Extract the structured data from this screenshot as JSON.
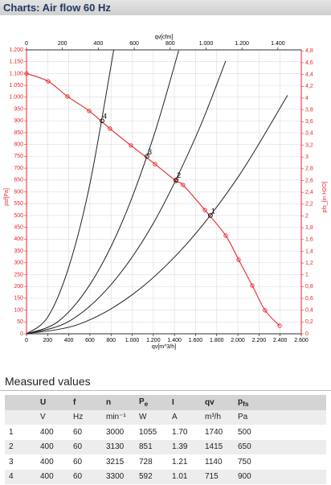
{
  "header": {
    "title": "Charts: Air flow 60 Hz"
  },
  "chart_data": {
    "type": "line",
    "x_label": "qv[m^3/h]",
    "x2_label": "qv[cfm]",
    "y_label": "psf[Pa]",
    "y2_label": "pfs_[in H2O]",
    "xlim": [
      0,
      2600
    ],
    "xticks": [
      0,
      200,
      400,
      600,
      800,
      {
        "value": 1000,
        "label": "1.000"
      },
      {
        "value": 1200,
        "label": "1.200"
      },
      {
        "value": 1400,
        "label": "1.400"
      },
      {
        "value": 1600,
        "label": "1.600"
      },
      {
        "value": 1800,
        "label": "1.800"
      },
      {
        "value": 2000,
        "label": "2.000"
      },
      {
        "value": 2200,
        "label": "2.200"
      },
      {
        "value": 2400,
        "label": "2.400"
      },
      {
        "value": 2600,
        "label": "2.600"
      }
    ],
    "x2lim": [
      0,
      1530.3
    ],
    "x2ticks": [
      0,
      200,
      400,
      600,
      800,
      {
        "value": 1000,
        "label": "1.000"
      },
      {
        "value": 1200,
        "label": "1.200"
      },
      {
        "value": 1400,
        "label": "1.400"
      }
    ],
    "ylim": [
      0,
      1200
    ],
    "yticks": [
      0,
      50,
      100,
      150,
      200,
      250,
      300,
      350,
      400,
      450,
      500,
      550,
      600,
      650,
      700,
      750,
      800,
      850,
      900,
      950,
      {
        "value": 1000,
        "label": "1.000"
      },
      {
        "value": 1050,
        "label": "1.050"
      },
      {
        "value": 1100,
        "label": "1.100"
      },
      {
        "value": 1150,
        "label": "1.150"
      },
      {
        "value": 1200,
        "label": "1.200"
      }
    ],
    "y2lim": [
      0,
      4.818
    ],
    "y2ticks": [
      0,
      {
        "value": 0.2,
        "label": "0,2"
      },
      {
        "value": 0.4,
        "label": "0,4"
      },
      {
        "value": 0.6,
        "label": "0,6"
      },
      {
        "value": 0.8,
        "label": "0,8"
      },
      1,
      {
        "value": 1.2,
        "label": "1,2"
      },
      {
        "value": 1.4,
        "label": "1,4"
      },
      {
        "value": 1.6,
        "label": "1,6"
      },
      {
        "value": 1.8,
        "label": "1,8"
      },
      2,
      {
        "value": 2.2,
        "label": "2,2"
      },
      {
        "value": 2.4,
        "label": "2,4"
      },
      {
        "value": 2.6,
        "label": "2,6"
      },
      {
        "value": 2.8,
        "label": "2,8"
      },
      3,
      {
        "value": 3.2,
        "label": "3,2"
      },
      {
        "value": 3.4,
        "label": "3,4"
      },
      {
        "value": 3.6,
        "label": "3,6"
      },
      {
        "value": 3.8,
        "label": "3,8"
      },
      4,
      {
        "value": 4.2,
        "label": "4,2"
      },
      {
        "value": 4.4,
        "label": "4,4"
      },
      {
        "value": 4.6,
        "label": "4,6"
      },
      {
        "value": 4.8,
        "label": "4,8"
      }
    ],
    "grid": true,
    "series": [
      {
        "color": "#e8262a",
        "x": [
          0,
          205,
          388,
          593,
          790,
          988,
          1216,
          1414,
          1482,
          1688,
          1885,
          2007,
          2136,
          2258,
          2395
        ],
        "values": [
          1100,
          1067,
          1003,
          942,
          867,
          796,
          717,
          646,
          629,
          523,
          415,
          313,
          204,
          99,
          34
        ]
      }
    ],
    "system_curves": [
      {
        "color": "#222222",
        "x": [
          0,
          500,
          1000,
          1500,
          2000,
          2470
        ],
        "values": [
          0,
          41,
          165,
          372,
          661,
          1008
        ]
      },
      {
        "color": "#222222",
        "x": [
          0,
          400,
          800,
          1200,
          1600,
          1885
        ],
        "values": [
          0,
          52,
          208,
          467,
          831,
          1153
        ]
      },
      {
        "color": "#222222",
        "x": [
          0,
          300,
          600,
          900,
          1200,
          1440
        ],
        "values": [
          0,
          52,
          208,
          467,
          831,
          1197
        ]
      },
      {
        "color": "#222222",
        "x": [
          0,
          200,
          400,
          600,
          826
        ],
        "values": [
          0,
          70,
          282,
          634,
          1201
        ]
      }
    ],
    "operating_points": {
      "labels": [
        "1",
        "2",
        "3",
        "4"
      ],
      "x": [
        1740,
        1415,
        1140,
        715
      ],
      "values": [
        500,
        650,
        750,
        900
      ]
    }
  },
  "section": {
    "title": "Measured values"
  },
  "table": {
    "header": [
      "U",
      "f",
      "n",
      {
        "main": "P",
        "sub": "e"
      },
      "I",
      "qv",
      {
        "main": "p",
        "sub": "fs"
      }
    ],
    "units": [
      "V",
      "Hz",
      "min⁻¹",
      "W",
      "A",
      "m³/h",
      "Pa"
    ],
    "rows": [
      [
        "1",
        "400",
        "60",
        "3000",
        "1055",
        "1.70",
        "1740",
        "500"
      ],
      [
        "2",
        "400",
        "60",
        "3130",
        "851",
        "1.39",
        "1415",
        "650"
      ],
      [
        "3",
        "400",
        "60",
        "3215",
        "728",
        "1.21",
        "1140",
        "750"
      ],
      [
        "4",
        "400",
        "60",
        "3300",
        "592",
        "1.01",
        "715",
        "900"
      ]
    ]
  }
}
